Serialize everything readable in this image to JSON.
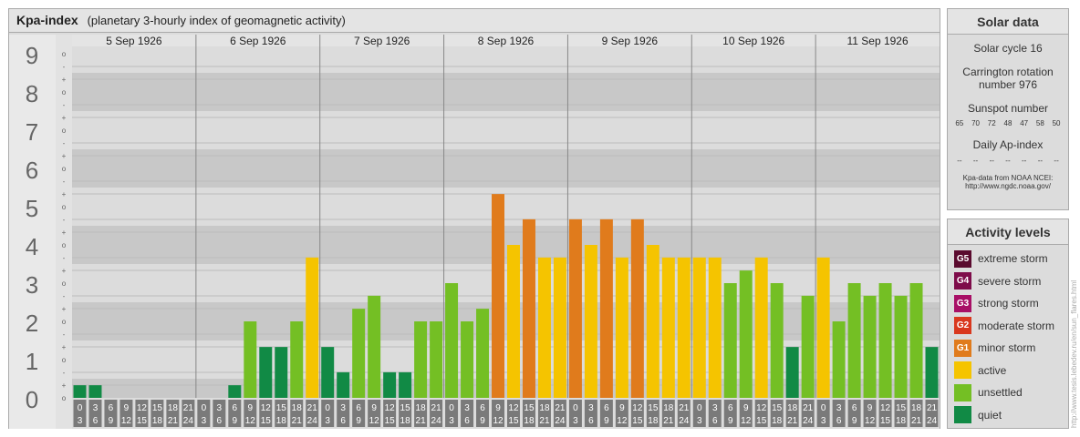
{
  "header": {
    "title": "Kpa-index",
    "subtitle": "(planetary 3-hourly index of geomagnetic activity)"
  },
  "solar": {
    "title": "Solar data",
    "cycle": "Solar cycle 16",
    "carrington_line1": "Carrington rotation",
    "carrington_line2": "number 976",
    "sunspot_label": "Sunspot number",
    "sunspots": [
      "65",
      "70",
      "72",
      "48",
      "47",
      "58",
      "50"
    ],
    "ap_label": "Daily Ap-index",
    "ap_values": [
      "--",
      "--",
      "--",
      "--",
      "--",
      "--",
      "--"
    ],
    "source_line1": "Kpa-data from NOAA NCEI:",
    "source_line2": "http://www.ngdc.noaa.gov/"
  },
  "activity": {
    "title": "Activity levels",
    "levels": [
      {
        "code": "G5",
        "label": "extreme storm",
        "color": "#5a0a2e"
      },
      {
        "code": "G4",
        "label": "severe storm",
        "color": "#7e0c4a"
      },
      {
        "code": "G3",
        "label": "strong storm",
        "color": "#a80f66"
      },
      {
        "code": "G2",
        "label": "moderate storm",
        "color": "#d9381e"
      },
      {
        "code": "G1",
        "label": "minor storm",
        "color": "#e07b1c"
      },
      {
        "code": "",
        "label": "active",
        "color": "#f5c400"
      },
      {
        "code": "",
        "label": "unsettled",
        "color": "#74bf24"
      },
      {
        "code": "",
        "label": "quiet",
        "color": "#118a45"
      }
    ]
  },
  "credit": "http://www.tesis.lebedev.ru/en/sun_flares.html",
  "chart_data": {
    "type": "bar",
    "y_axis_labels": [
      "0",
      "1",
      "2",
      "3",
      "4",
      "5",
      "6",
      "7",
      "8",
      "9"
    ],
    "sub_tick_labels": [
      "+",
      "o",
      "-"
    ],
    "days": [
      "5 Sep 1926",
      "6 Sep 1926",
      "7 Sep 1926",
      "8 Sep 1926",
      "9 Sep 1926",
      "10 Sep 1926",
      "11 Sep 1926"
    ],
    "interval_start": [
      "0",
      "3",
      "6",
      "9",
      "12",
      "15",
      "18",
      "21"
    ],
    "interval_end": [
      "3",
      "6",
      "9",
      "12",
      "15",
      "18",
      "21",
      "24"
    ],
    "ylim": [
      0,
      9.67
    ],
    "values": [
      0.33,
      0.33,
      0.0,
      0.0,
      0.0,
      0.0,
      0.0,
      0.0,
      0.0,
      0.0,
      0.33,
      2.0,
      1.33,
      1.33,
      2.0,
      3.67,
      1.33,
      0.67,
      2.33,
      2.67,
      0.67,
      0.67,
      2.0,
      2.0,
      3.0,
      2.0,
      2.33,
      5.33,
      4.0,
      4.67,
      3.67,
      3.67,
      4.67,
      4.0,
      4.67,
      3.67,
      4.67,
      4.0,
      3.67,
      3.67,
      3.67,
      3.67,
      3.0,
      3.33,
      3.67,
      3.0,
      1.33,
      2.67,
      3.67,
      2.0,
      3.0,
      2.67,
      3.0,
      2.67,
      3.0,
      1.33
    ],
    "colors": {
      "quiet": "#118a45",
      "unsettled": "#74bf24",
      "active": "#f5c400",
      "g1": "#e07b1c",
      "g2": "#d9381e",
      "g3": "#a80f66",
      "g4": "#7e0c4a",
      "g5": "#5a0a2e"
    }
  }
}
